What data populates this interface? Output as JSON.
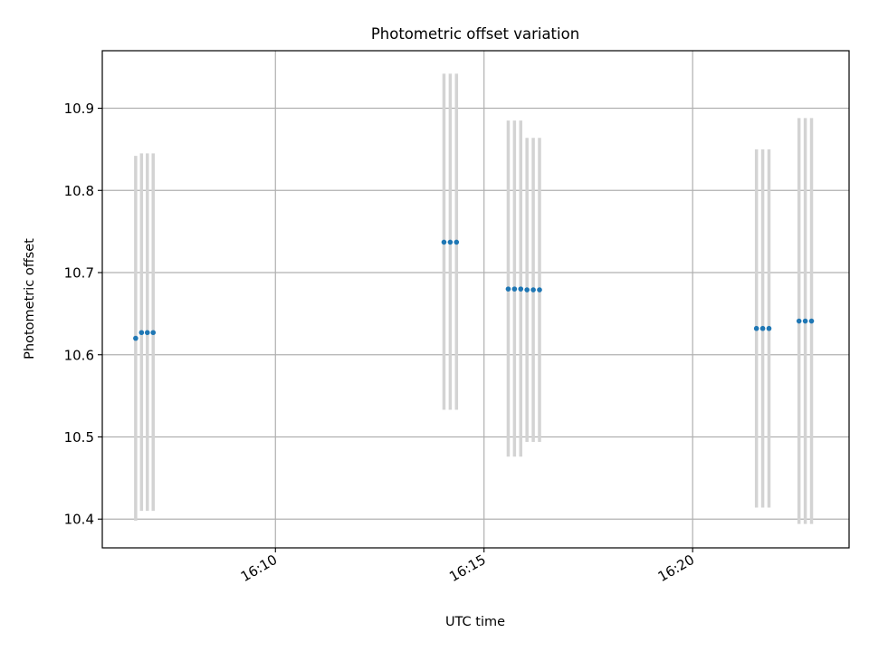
{
  "chart_data": {
    "type": "scatter",
    "title": "Photometric offset variation",
    "xlabel": "UTC time",
    "ylabel": "Photometric offset",
    "x_unit": "minutes after 16:00 UTC",
    "xlim": [
      5.85,
      23.75
    ],
    "ylim": [
      10.365,
      10.97
    ],
    "yticks": [
      10.4,
      10.5,
      10.6,
      10.7,
      10.8,
      10.9
    ],
    "ytick_labels": [
      "10.4",
      "10.5",
      "10.6",
      "10.7",
      "10.8",
      "10.9"
    ],
    "xticks": [
      10,
      15,
      20
    ],
    "xtick_labels": [
      "16:10",
      "16:15",
      "16:20"
    ],
    "grid": true,
    "point_color": "#1f77b4",
    "errorbar_color": "#d3d3d3",
    "points": [
      {
        "t": 6.65,
        "y": 10.62,
        "ylo": 10.398,
        "yhi": 10.842
      },
      {
        "t": 6.79,
        "y": 10.627,
        "ylo": 10.41,
        "yhi": 10.845
      },
      {
        "t": 6.93,
        "y": 10.627,
        "ylo": 10.41,
        "yhi": 10.845
      },
      {
        "t": 7.07,
        "y": 10.627,
        "ylo": 10.41,
        "yhi": 10.845
      },
      {
        "t": 14.04,
        "y": 10.737,
        "ylo": 10.533,
        "yhi": 10.942
      },
      {
        "t": 14.19,
        "y": 10.737,
        "ylo": 10.533,
        "yhi": 10.942
      },
      {
        "t": 14.34,
        "y": 10.737,
        "ylo": 10.533,
        "yhi": 10.942
      },
      {
        "t": 15.58,
        "y": 10.68,
        "ylo": 10.476,
        "yhi": 10.885
      },
      {
        "t": 15.73,
        "y": 10.68,
        "ylo": 10.476,
        "yhi": 10.885
      },
      {
        "t": 15.88,
        "y": 10.68,
        "ylo": 10.476,
        "yhi": 10.885
      },
      {
        "t": 16.03,
        "y": 10.679,
        "ylo": 10.494,
        "yhi": 10.864
      },
      {
        "t": 16.18,
        "y": 10.679,
        "ylo": 10.494,
        "yhi": 10.864
      },
      {
        "t": 16.33,
        "y": 10.679,
        "ylo": 10.494,
        "yhi": 10.864
      },
      {
        "t": 21.53,
        "y": 10.632,
        "ylo": 10.414,
        "yhi": 10.85
      },
      {
        "t": 21.68,
        "y": 10.632,
        "ylo": 10.414,
        "yhi": 10.85
      },
      {
        "t": 21.83,
        "y": 10.632,
        "ylo": 10.414,
        "yhi": 10.85
      },
      {
        "t": 22.55,
        "y": 10.641,
        "ylo": 10.394,
        "yhi": 10.888
      },
      {
        "t": 22.7,
        "y": 10.641,
        "ylo": 10.394,
        "yhi": 10.888
      },
      {
        "t": 22.85,
        "y": 10.641,
        "ylo": 10.394,
        "yhi": 10.888
      }
    ]
  }
}
